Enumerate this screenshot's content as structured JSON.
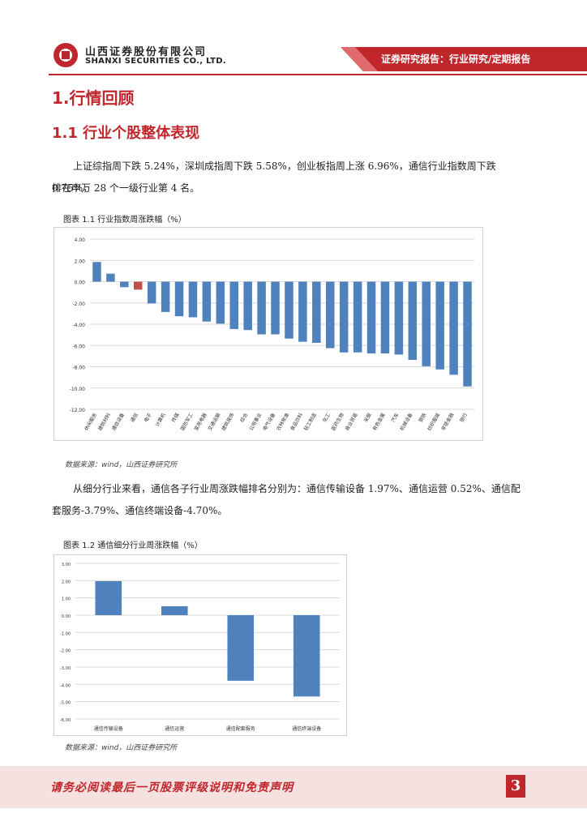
{
  "header": {
    "company_cn": "山西证券股份有限公司",
    "company_en": "SHANXI SECURITIES CO., LTD.",
    "report_type": "证券研究报告：行业研究/定期报告"
  },
  "section": {
    "h1": "1.行情回顾",
    "h2": "1.1 行业个股整体表现"
  },
  "paragraphs": {
    "p1_line1": "上证综指周下跌 5.24%，深圳成指周下跌 5.58%，创业板指周上涨 6.96%，通信行业指数周下跌 0.75%，",
    "p1_line2": "排在申万 28 个一级行业第 4 名。",
    "p2_line1": "从细分行业来看，通信各子行业周涨跌幅排名分别为：通信传输设备 1.97%、通信运营 0.52%、通信配",
    "p2_line2": "套服务-3.79%、通信终端设备-4.70%。"
  },
  "captions": {
    "fig1": "图表 1.1  行业指数周涨跌幅（%）",
    "fig2": "图表 1.2   通信细分行业周涨跌幅（%）"
  },
  "sources": {
    "fig1": "数据来源：wind，山西证券研究所",
    "fig2": "数据来源：wind，山西证券研究所"
  },
  "footer": {
    "disclaimer": "请务必阅读最后一页股票评级说明和免责声明",
    "page_number": "3"
  },
  "colors": {
    "brand_red": "#c0272d",
    "bar_blue": "#4f81bd",
    "bar_highlight": "#c0504d"
  },
  "chart_data": [
    {
      "type": "bar",
      "title": "图表 1.1  行业指数周涨跌幅（%）",
      "categories": [
        "休闲服务",
        "建筑材料",
        "通信设备",
        "通信",
        "电子",
        "计算机",
        "传媒",
        "国防军工",
        "家用电器",
        "交通运输",
        "建筑装饰",
        "综合",
        "公用事业",
        "电气设备",
        "农林牧渔",
        "食品饮料",
        "轻工制造",
        "化工",
        "医药生物",
        "商业贸易",
        "采掘",
        "有色金属",
        "汽车",
        "机械设备",
        "钢铁",
        "纺织服装",
        "非银金融",
        "银行"
      ],
      "values": [
        1.85,
        0.75,
        -0.52,
        -0.75,
        -2.05,
        -2.85,
        -3.25,
        -3.35,
        -3.75,
        -3.95,
        -4.45,
        -4.55,
        -4.95,
        -4.95,
        -5.35,
        -5.65,
        -5.75,
        -6.25,
        -6.65,
        -6.65,
        -6.75,
        -6.75,
        -6.85,
        -7.35,
        -7.95,
        -8.25,
        -8.75,
        -9.85
      ],
      "highlight_index": 3,
      "ylim": [
        -12,
        4
      ],
      "yticks": [
        "4.00",
        "2.00",
        "0.00",
        "-2.00",
        "-4.00",
        "-6.00",
        "-8.00",
        "-10.00",
        "-12.00"
      ],
      "xlabel": "",
      "ylabel": ""
    },
    {
      "type": "bar",
      "title": "图表 1.2   通信细分行业周涨跌幅（%）",
      "categories": [
        "通信传输设备",
        "通信运营",
        "通信配套服务",
        "通信终端设备"
      ],
      "values": [
        1.97,
        0.52,
        -3.79,
        -4.7
      ],
      "ylim": [
        -6,
        3
      ],
      "yticks": [
        "3.00",
        "2.00",
        "1.00",
        "0.00",
        "-1.00",
        "-2.00",
        "-3.00",
        "-4.00",
        "-5.00",
        "-6.00"
      ],
      "xlabel": "",
      "ylabel": ""
    }
  ]
}
